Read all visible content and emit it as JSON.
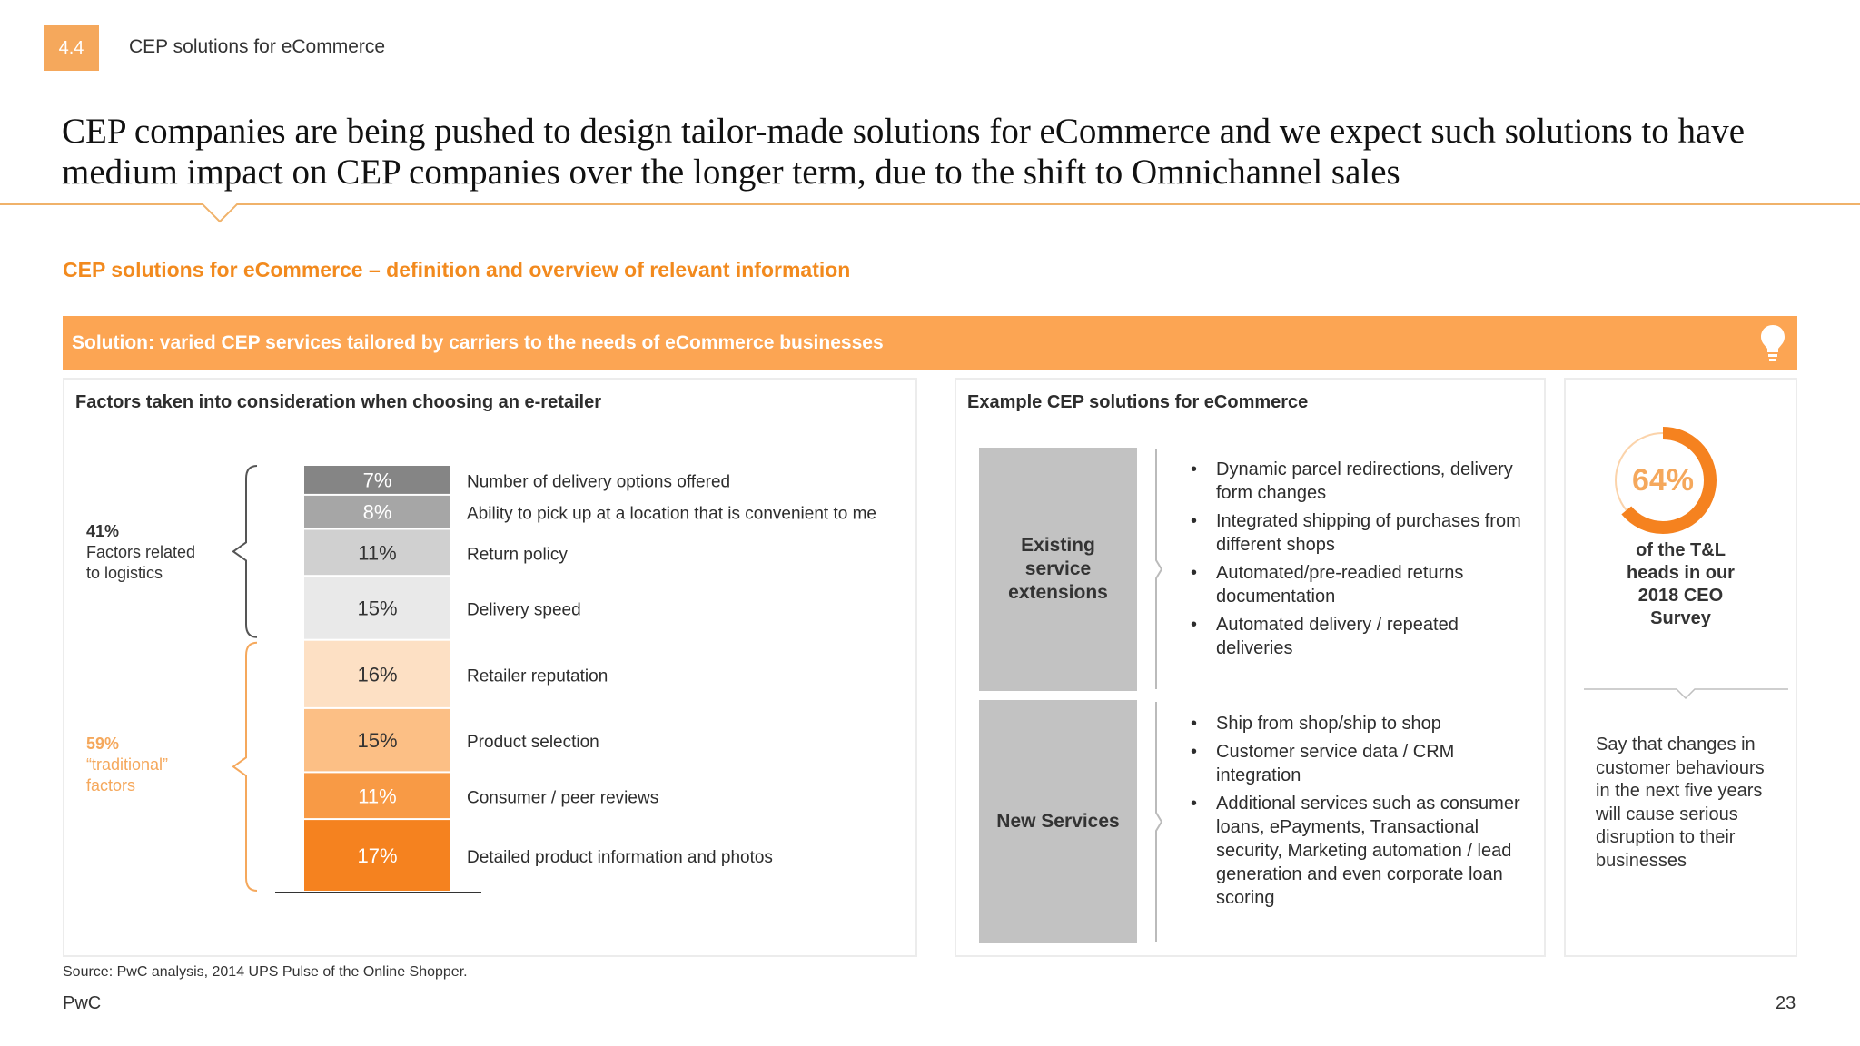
{
  "header": {
    "section_number": "4.4",
    "section_title": "CEP solutions for eCommerce",
    "headline": "CEP companies are being pushed to design tailor-made solutions for eCommerce and we expect such solutions to have medium impact on CEP companies over the longer term, due to the shift to Omnichannel sales",
    "subtitle": "CEP solutions for eCommerce – definition and overview of relevant information"
  },
  "banner": {
    "text": "Solution: varied CEP services tailored by carriers to the needs of eCommerce businesses",
    "icon": "lightbulb-icon"
  },
  "factors": {
    "title": "Factors taken into consideration when choosing an e-retailer",
    "groups": [
      {
        "pct": "41%",
        "label": "Factors related to logistics",
        "color": "#333333"
      },
      {
        "pct": "59%",
        "label": "“traditional” factors",
        "color": "#f5a85c"
      }
    ]
  },
  "chart_data": {
    "type": "bar",
    "orientation": "stacked-vertical",
    "unit": "%",
    "segments": [
      {
        "label": "Number of delivery options offered",
        "value": 7,
        "color": "#858585",
        "text_color": "#ffffff"
      },
      {
        "label": "Ability to pick up at a location that is convenient to me",
        "value": 8,
        "color": "#a6a6a6",
        "text_color": "#ffffff"
      },
      {
        "label": "Return policy",
        "value": 11,
        "color": "#d0d0d0",
        "text_color": "#333333"
      },
      {
        "label": "Delivery speed",
        "value": 15,
        "color": "#e9e9e9",
        "text_color": "#333333"
      },
      {
        "label": "Retailer reputation",
        "value": 16,
        "color": "#fde0c4",
        "text_color": "#333333"
      },
      {
        "label": "Product selection",
        "value": 15,
        "color": "#fcbf85",
        "text_color": "#333333"
      },
      {
        "label": "Consumer / peer reviews",
        "value": 11,
        "color": "#f89a45",
        "text_color": "#ffffff"
      },
      {
        "label": "Detailed product information and photos",
        "value": 17,
        "color": "#f5821f",
        "text_color": "#ffffff"
      }
    ]
  },
  "examples": {
    "title": "Example CEP solutions for eCommerce",
    "categories": [
      {
        "name": "Existing service extensions",
        "items": [
          "Dynamic parcel redirections, delivery form changes",
          "Integrated shipping of purchases from different shops",
          "Automated/pre-readied returns documentation",
          "Automated delivery / repeated deliveries"
        ]
      },
      {
        "name": "New Services",
        "items": [
          "Ship from shop/ship to shop",
          "Customer service data / CRM integration",
          "Additional services such as consumer loans, ePayments, Transactional security, Marketing automation / lead generation and even corporate loan scoring"
        ]
      }
    ]
  },
  "survey": {
    "percent_text": "64%",
    "percent_value": 64,
    "label": "of the T&L heads in our 2018 CEO Survey",
    "statement": "Say that changes in customer behaviours in the next five years will cause serious disruption to their businesses",
    "ring_color": "#f5821f",
    "track_color": "#fbd3aa"
  },
  "footer": {
    "source": "Source: PwC analysis, 2014 UPS Pulse of the Online Shopper.",
    "brand": "PwC",
    "page_number": "23"
  }
}
